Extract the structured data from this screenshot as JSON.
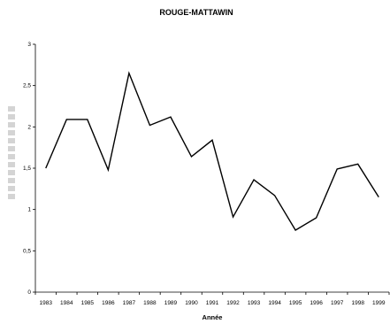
{
  "chart_data": {
    "type": "line",
    "title": "ROUGE-MATTAWIN",
    "xlabel": "Année",
    "ylabel": "",
    "x": [
      "1983",
      "1984",
      "1985",
      "1986",
      "1987",
      "1988",
      "1989",
      "1990",
      "1991",
      "1992",
      "1993",
      "1994",
      "1995",
      "1996",
      "1997",
      "1998",
      "1999"
    ],
    "series": [
      {
        "values": [
          1.5,
          2.09,
          2.09,
          1.48,
          2.65,
          2.02,
          2.12,
          1.64,
          1.84,
          0.91,
          1.36,
          1.17,
          0.75,
          0.9,
          1.49,
          1.55,
          1.15
        ]
      }
    ],
    "yticks": [
      "0",
      "0,5",
      "1",
      "1,5",
      "2",
      "2,5",
      "3"
    ],
    "ylim": [
      0,
      3
    ],
    "grid": false,
    "legend": "none",
    "line_color": "#000000"
  }
}
